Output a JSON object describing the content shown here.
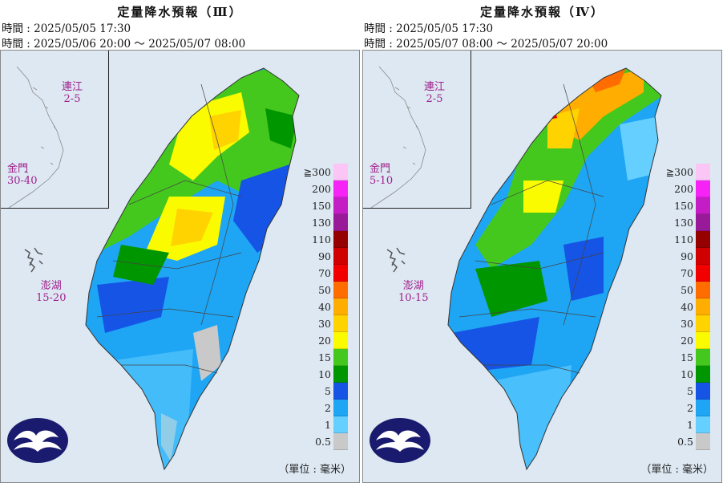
{
  "panels": [
    {
      "title": "定量降水預報（Ⅲ）",
      "issue_time": "時間 : 2025/05/05 17:30",
      "valid_time": "時間 : 2025/05/06 20:00 ～ 2025/05/07 08:00",
      "islands": [
        {
          "name": "連江",
          "range": "2-5"
        },
        {
          "name": "金門",
          "range": "30-40"
        },
        {
          "name": "澎湖",
          "range": "15-20"
        }
      ]
    },
    {
      "title": "定量降水預報（Ⅳ）",
      "issue_time": "時間 : 2025/05/05 17:30",
      "valid_time": "時間 : 2025/05/07 08:00 ～ 2025/05/07 20:00",
      "islands": [
        {
          "name": "連江",
          "range": "2-5"
        },
        {
          "name": "金門",
          "range": "5-10"
        },
        {
          "name": "澎湖",
          "range": "10-15"
        }
      ]
    }
  ],
  "legend": {
    "levels": [
      "≧300",
      "200",
      "150",
      "130",
      "110",
      "90",
      "70",
      "50",
      "40",
      "30",
      "20",
      "15",
      "10",
      "5",
      "2",
      "1",
      "0.5"
    ],
    "colors": [
      "#fbc6f6",
      "#f523f5",
      "#c51dc5",
      "#991a99",
      "#950000",
      "#d00000",
      "#f20000",
      "#ff6c00",
      "#ffad00",
      "#ffd300",
      "#fbfb00",
      "#45c81e",
      "#009600",
      "#1554e5",
      "#1ea5f4",
      "#65d0ff",
      "#b3f3ff",
      "#c9c9c9"
    ]
  },
  "unit": "（單位 : 毫米）",
  "logo_icon": "cwa-cloud-logo-icon"
}
